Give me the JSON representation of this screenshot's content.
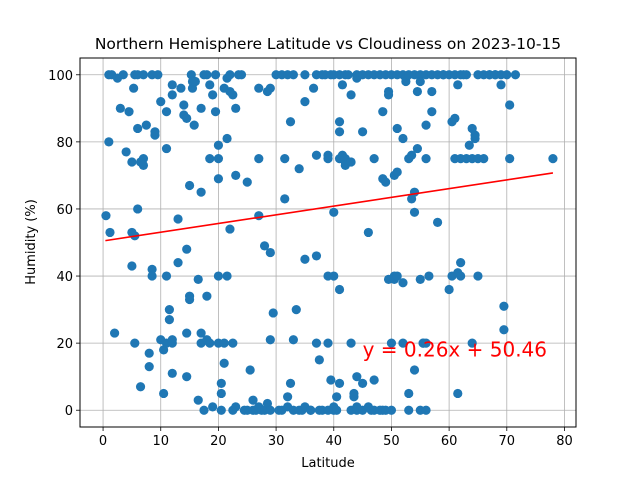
{
  "chart_data": {
    "type": "scatter",
    "title": "Northern Hemisphere Latitude vs Cloudiness on 2023-10-15",
    "xlabel": "Latitude",
    "ylabel": "Humidity (%)",
    "xlim": [
      -4,
      82
    ],
    "ylim": [
      -5,
      105
    ],
    "xticks": [
      "0",
      "10",
      "20",
      "30",
      "40",
      "50",
      "60",
      "70",
      "80"
    ],
    "yticks": [
      "0",
      "20",
      "40",
      "60",
      "80",
      "100"
    ],
    "grid": true,
    "point_color": "#1f77b4",
    "line_color": "#ff0000",
    "regression": {
      "slope": 0.26,
      "intercept": 50.46,
      "x_range": [
        0.4,
        78
      ],
      "equation_text": "y = 0.26x + 50.46",
      "equation_anchor": [
        45,
        16
      ]
    },
    "series": [
      {
        "points": [
          [
            0.5,
            58
          ],
          [
            1,
            80
          ],
          [
            1.2,
            53
          ],
          [
            1,
            100
          ],
          [
            1.5,
            100
          ],
          [
            2,
            23
          ],
          [
            2.5,
            99
          ],
          [
            3,
            90
          ],
          [
            3.5,
            100
          ],
          [
            4,
            77
          ],
          [
            4.5,
            89
          ],
          [
            5,
            53
          ],
          [
            5,
            43
          ],
          [
            5,
            74
          ],
          [
            5.5,
            52
          ],
          [
            5.5,
            100
          ],
          [
            5.3,
            96
          ],
          [
            5.5,
            20
          ],
          [
            6,
            100
          ],
          [
            6,
            84
          ],
          [
            6,
            60
          ],
          [
            6.5,
            7
          ],
          [
            6.5,
            74
          ],
          [
            7,
            75
          ],
          [
            7,
            73
          ],
          [
            7,
            100
          ],
          [
            7.5,
            85
          ],
          [
            8,
            13
          ],
          [
            8,
            17
          ],
          [
            8.5,
            100
          ],
          [
            8.5,
            42
          ],
          [
            8.5,
            40
          ],
          [
            9,
            82
          ],
          [
            9,
            83
          ],
          [
            9.5,
            100
          ],
          [
            10,
            92
          ],
          [
            10,
            21
          ],
          [
            10.5,
            18
          ],
          [
            10.5,
            5
          ],
          [
            11,
            20
          ],
          [
            11,
            40
          ],
          [
            11,
            78
          ],
          [
            11,
            89
          ],
          [
            11.5,
            30
          ],
          [
            11.5,
            27
          ],
          [
            12,
            11
          ],
          [
            12,
            20
          ],
          [
            12,
            21
          ],
          [
            12,
            97
          ],
          [
            12,
            94
          ],
          [
            13,
            57
          ],
          [
            13,
            44
          ],
          [
            13.5,
            96
          ],
          [
            14,
            91
          ],
          [
            14,
            88
          ],
          [
            14.5,
            87
          ],
          [
            14.5,
            10
          ],
          [
            14.5,
            23
          ],
          [
            14.5,
            48
          ],
          [
            15,
            34
          ],
          [
            15,
            33
          ],
          [
            15,
            67
          ],
          [
            15.3,
            100
          ],
          [
            15.5,
            96
          ],
          [
            15.5,
            98
          ],
          [
            15.8,
            85
          ],
          [
            16,
            98
          ],
          [
            16.5,
            39
          ],
          [
            16.5,
            3
          ],
          [
            17,
            20
          ],
          [
            17,
            23
          ],
          [
            17,
            65
          ],
          [
            17,
            90
          ],
          [
            17.5,
            100
          ],
          [
            17.5,
            0
          ],
          [
            18,
            100
          ],
          [
            18,
            34
          ],
          [
            18,
            21
          ],
          [
            18.5,
            97
          ],
          [
            18.5,
            75
          ],
          [
            18.5,
            20
          ],
          [
            19,
            94
          ],
          [
            19,
            1
          ],
          [
            19.5,
            100
          ],
          [
            19.5,
            89
          ],
          [
            20,
            40
          ],
          [
            20,
            69
          ],
          [
            20,
            75
          ],
          [
            20,
            79
          ],
          [
            20,
            20
          ],
          [
            20.5,
            0
          ],
          [
            20.5,
            5
          ],
          [
            20.5,
            8
          ],
          [
            21,
            14
          ],
          [
            21,
            96
          ],
          [
            21,
            20
          ],
          [
            21.5,
            81
          ],
          [
            21.5,
            40
          ],
          [
            21.5,
            99
          ],
          [
            22,
            95
          ],
          [
            22,
            54
          ],
          [
            22,
            100
          ],
          [
            22.5,
            94
          ],
          [
            22.5,
            0
          ],
          [
            22.5,
            20
          ],
          [
            23,
            90
          ],
          [
            23,
            1
          ],
          [
            23,
            70
          ],
          [
            23.5,
            100
          ],
          [
            24,
            100
          ],
          [
            24.5,
            0
          ],
          [
            25,
            0
          ],
          [
            25,
            68
          ],
          [
            25.5,
            12
          ],
          [
            26,
            0
          ],
          [
            26,
            3
          ],
          [
            26.5,
            0
          ],
          [
            27,
            96
          ],
          [
            27,
            75
          ],
          [
            27,
            58
          ],
          [
            27,
            1
          ],
          [
            27.5,
            0
          ],
          [
            28,
            49
          ],
          [
            28,
            0
          ],
          [
            28.5,
            95
          ],
          [
            28.5,
            2
          ],
          [
            29,
            96
          ],
          [
            29,
            47
          ],
          [
            29,
            21
          ],
          [
            29,
            0
          ],
          [
            29.5,
            29
          ],
          [
            30,
            100
          ],
          [
            30.5,
            0
          ],
          [
            31,
            100
          ],
          [
            31,
            0
          ],
          [
            31.5,
            75
          ],
          [
            31.5,
            63
          ],
          [
            32,
            4
          ],
          [
            32,
            1
          ],
          [
            32,
            100
          ],
          [
            32.5,
            86
          ],
          [
            32.5,
            8
          ],
          [
            33,
            0
          ],
          [
            33,
            21
          ],
          [
            33.5,
            30
          ],
          [
            33,
            100
          ],
          [
            34,
            0
          ],
          [
            34,
            72
          ],
          [
            34.5,
            0
          ],
          [
            35,
            100
          ],
          [
            35,
            92
          ],
          [
            35,
            45
          ],
          [
            35,
            1
          ],
          [
            36,
            0
          ],
          [
            36,
            0
          ],
          [
            36.5,
            96
          ],
          [
            37,
            100
          ],
          [
            37,
            76
          ],
          [
            37,
            46
          ],
          [
            37,
            20
          ],
          [
            37.5,
            15
          ],
          [
            37.5,
            0
          ],
          [
            38,
            100
          ],
          [
            38,
            0
          ],
          [
            38.5,
            100
          ],
          [
            39,
            0
          ],
          [
            39,
            76
          ],
          [
            39,
            40
          ],
          [
            39,
            75
          ],
          [
            39,
            20
          ],
          [
            39.5,
            100
          ],
          [
            39.5,
            9
          ],
          [
            40,
            59
          ],
          [
            40,
            100
          ],
          [
            40,
            40
          ],
          [
            40,
            1
          ],
          [
            40,
            0
          ],
          [
            40.5,
            4
          ],
          [
            40.5,
            0
          ],
          [
            41,
            86
          ],
          [
            41,
            83
          ],
          [
            41,
            36
          ],
          [
            41,
            8
          ],
          [
            41,
            100
          ],
          [
            41,
            75
          ],
          [
            41.5,
            76
          ],
          [
            41.5,
            97
          ],
          [
            42,
            74
          ],
          [
            42,
            75
          ],
          [
            42,
            73
          ],
          [
            42,
            100
          ],
          [
            42.5,
            100
          ],
          [
            43,
            94
          ],
          [
            43,
            74
          ],
          [
            43,
            0
          ],
          [
            43,
            20
          ],
          [
            43.5,
            4
          ],
          [
            43.5,
            5
          ],
          [
            44,
            100
          ],
          [
            44,
            99
          ],
          [
            44,
            10
          ],
          [
            44,
            1
          ],
          [
            44,
            0
          ],
          [
            45,
            83
          ],
          [
            45,
            100
          ],
          [
            45,
            8
          ],
          [
            45,
            0
          ],
          [
            46,
            100
          ],
          [
            46,
            53
          ],
          [
            46,
            1
          ],
          [
            46.5,
            0
          ],
          [
            47,
            100
          ],
          [
            47,
            9
          ],
          [
            47,
            75
          ],
          [
            47,
            0
          ],
          [
            48,
            100
          ],
          [
            48,
            0
          ],
          [
            48.5,
            89
          ],
          [
            48.5,
            69
          ],
          [
            48.5,
            0
          ],
          [
            49,
            100
          ],
          [
            49,
            68
          ],
          [
            49,
            0
          ],
          [
            49.5,
            95
          ],
          [
            49.5,
            94
          ],
          [
            49.5,
            39
          ],
          [
            50,
            100
          ],
          [
            50,
            20
          ],
          [
            50,
            0
          ],
          [
            50.5,
            70
          ],
          [
            50.5,
            39
          ],
          [
            50.5,
            40
          ],
          [
            51,
            71
          ],
          [
            51,
            84
          ],
          [
            51,
            40
          ],
          [
            51,
            100
          ],
          [
            52,
            100
          ],
          [
            52,
            81
          ],
          [
            52,
            38
          ],
          [
            52,
            20
          ],
          [
            52.5,
            99
          ],
          [
            52.5,
            98
          ],
          [
            53,
            75
          ],
          [
            53,
            100
          ],
          [
            53,
            5
          ],
          [
            53.5,
            63
          ],
          [
            53,
            0
          ],
          [
            53.5,
            76
          ],
          [
            54,
            65
          ],
          [
            54,
            59
          ],
          [
            54,
            12
          ],
          [
            54,
            100
          ],
          [
            54.5,
            95
          ],
          [
            54.5,
            78
          ],
          [
            55,
            39
          ],
          [
            55,
            100
          ],
          [
            55,
            98
          ],
          [
            55,
            0
          ],
          [
            55.5,
            20
          ],
          [
            55.5,
            20
          ],
          [
            56,
            75
          ],
          [
            56,
            85
          ],
          [
            56,
            100
          ],
          [
            56,
            0
          ],
          [
            56,
            20
          ],
          [
            56.5,
            40
          ],
          [
            57,
            89
          ],
          [
            57,
            95
          ],
          [
            57,
            100
          ],
          [
            58,
            100
          ],
          [
            58,
            56
          ],
          [
            59,
            100
          ],
          [
            59,
            100
          ],
          [
            60,
            100
          ],
          [
            60,
            36
          ],
          [
            60.5,
            40
          ],
          [
            60.5,
            86
          ],
          [
            61,
            87
          ],
          [
            61,
            100
          ],
          [
            61,
            75
          ],
          [
            61.5,
            97
          ],
          [
            61.5,
            5
          ],
          [
            61.5,
            41
          ],
          [
            62,
            44
          ],
          [
            62,
            40
          ],
          [
            62,
            75
          ],
          [
            62,
            100
          ],
          [
            62.5,
            100
          ],
          [
            63,
            75
          ],
          [
            63,
            100
          ],
          [
            63.5,
            79
          ],
          [
            64,
            75
          ],
          [
            64,
            20
          ],
          [
            64,
            84
          ],
          [
            64.5,
            81
          ],
          [
            64.5,
            82
          ],
          [
            65,
            40
          ],
          [
            65,
            75
          ],
          [
            65,
            100
          ],
          [
            66,
            75
          ],
          [
            66,
            100
          ],
          [
            67,
            100
          ],
          [
            67,
            100
          ],
          [
            68,
            100
          ],
          [
            68,
            100
          ],
          [
            69,
            100
          ],
          [
            69,
            97
          ],
          [
            69.5,
            31
          ],
          [
            69.5,
            24
          ],
          [
            70,
            100
          ],
          [
            70.5,
            75
          ],
          [
            70.5,
            91
          ],
          [
            71.5,
            100
          ],
          [
            78,
            75
          ]
        ]
      }
    ]
  }
}
